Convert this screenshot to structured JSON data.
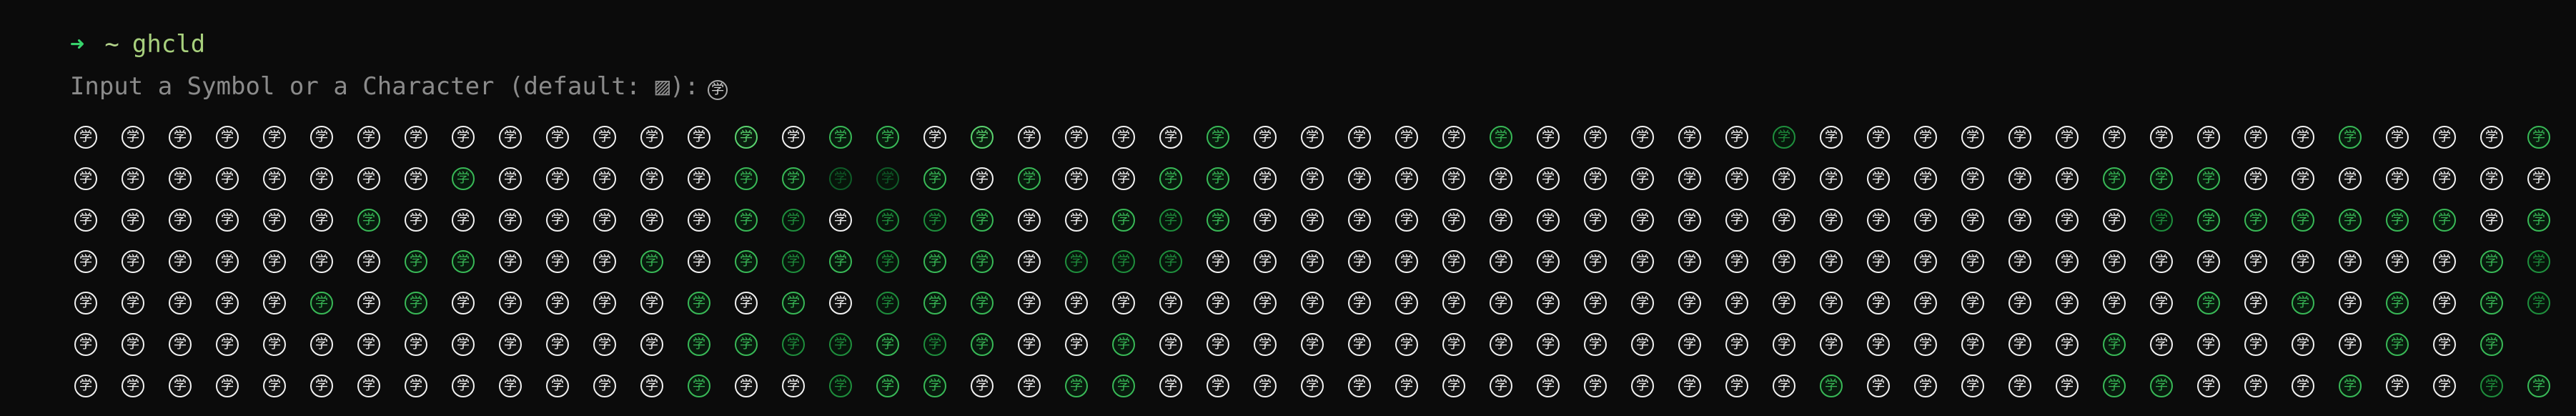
{
  "terminal": {
    "prompt_arrow": "➜",
    "prompt_tilde": "~",
    "command": "ghcld",
    "input_prompt": "Input a Symbol or a Character (default: ▨):",
    "input_value": "学"
  },
  "contribution_grid": {
    "symbol": "学",
    "colors": {
      "none": "#f2f2f2",
      "level_1": "#0f5b28",
      "level_2": "#1f8f3d",
      "level_3": "#39b957",
      "level_4": "#5bd36f"
    },
    "rows": [
      [
        0,
        0,
        0,
        0,
        0,
        0,
        0,
        0,
        0,
        0,
        0,
        0,
        0,
        0,
        4,
        0,
        3,
        3,
        0,
        4,
        0,
        0,
        0,
        0,
        3,
        0,
        0,
        0,
        0,
        0,
        3,
        0,
        0,
        0,
        0,
        0,
        2,
        0,
        0,
        0,
        0,
        0,
        0,
        0,
        0,
        0,
        0,
        0,
        3,
        0,
        0,
        0,
        3
      ],
      [
        0,
        0,
        0,
        0,
        0,
        0,
        0,
        0,
        3,
        0,
        0,
        0,
        0,
        0,
        3,
        3,
        1,
        1,
        3,
        0,
        3,
        0,
        0,
        3,
        3,
        0,
        0,
        0,
        0,
        0,
        0,
        0,
        0,
        0,
        0,
        0,
        0,
        0,
        0,
        0,
        0,
        0,
        0,
        3,
        3,
        3,
        0,
        0,
        0,
        0,
        0,
        0,
        0
      ],
      [
        0,
        0,
        0,
        0,
        0,
        0,
        3,
        0,
        0,
        0,
        0,
        0,
        0,
        0,
        3,
        2,
        0,
        2,
        2,
        3,
        0,
        0,
        3,
        2,
        3,
        0,
        0,
        0,
        0,
        0,
        0,
        0,
        0,
        0,
        0,
        0,
        0,
        0,
        0,
        0,
        0,
        0,
        0,
        0,
        2,
        3,
        3,
        3,
        3,
        3,
        3,
        0,
        3
      ],
      [
        0,
        0,
        0,
        0,
        0,
        0,
        0,
        3,
        3,
        0,
        0,
        0,
        3,
        0,
        3,
        2,
        3,
        2,
        3,
        3,
        0,
        2,
        2,
        2,
        0,
        0,
        0,
        0,
        0,
        0,
        0,
        0,
        0,
        0,
        0,
        0,
        0,
        0,
        0,
        0,
        0,
        0,
        0,
        0,
        0,
        0,
        0,
        0,
        0,
        0,
        0,
        3,
        2
      ],
      [
        0,
        0,
        0,
        0,
        0,
        3,
        0,
        3,
        0,
        0,
        0,
        0,
        0,
        3,
        0,
        3,
        0,
        2,
        3,
        3,
        0,
        0,
        0,
        0,
        0,
        0,
        0,
        0,
        0,
        0,
        0,
        0,
        0,
        0,
        0,
        0,
        0,
        0,
        0,
        0,
        0,
        0,
        0,
        0,
        0,
        3,
        0,
        3,
        0,
        3,
        0,
        3,
        2
      ],
      [
        0,
        0,
        0,
        0,
        0,
        0,
        0,
        0,
        0,
        0,
        0,
        0,
        0,
        3,
        3,
        2,
        2,
        3,
        2,
        3,
        0,
        0,
        3,
        0,
        0,
        0,
        0,
        0,
        0,
        0,
        0,
        0,
        0,
        0,
        0,
        0,
        0,
        0,
        0,
        0,
        0,
        0,
        0,
        3,
        0,
        0,
        0,
        0,
        0,
        3,
        0,
        3,
        -1
      ],
      [
        0,
        0,
        0,
        0,
        0,
        0,
        0,
        0,
        0,
        0,
        0,
        0,
        0,
        3,
        0,
        0,
        2,
        3,
        3,
        0,
        0,
        3,
        3,
        0,
        0,
        0,
        0,
        0,
        0,
        0,
        0,
        0,
        0,
        0,
        0,
        0,
        0,
        3,
        0,
        0,
        0,
        0,
        0,
        3,
        3,
        0,
        0,
        0,
        3,
        0,
        0,
        2,
        3
      ]
    ]
  }
}
